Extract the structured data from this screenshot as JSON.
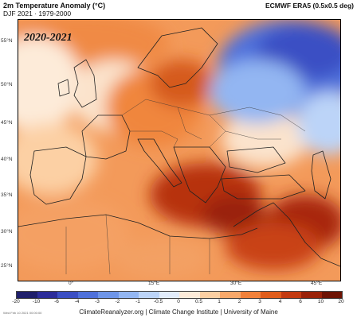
{
  "header": {
    "title_left": "2m Temperature Anomaly (°C)",
    "subtitle_left": "DJF 2021 · 1979-2000",
    "title_right": "ECMWF ERA5 (0.5x0.5 deg)"
  },
  "map": {
    "overlay_label": "2020-2021",
    "lat_labels": [
      "55°N",
      "50°N",
      "45°N",
      "40°N",
      "35°N",
      "30°N",
      "25°N"
    ],
    "lon_labels": [
      "0°",
      "15°E",
      "30°E",
      "45°E"
    ]
  },
  "colorbar": {
    "ticks": [
      "-20",
      "-10",
      "-6",
      "-4",
      "-3",
      "-2",
      "-1",
      "-0.5",
      "0",
      "0.5",
      "1",
      "2",
      "3",
      "4",
      "6",
      "10",
      "20"
    ],
    "colors": [
      "#1f1f6b",
      "#2d2d9a",
      "#3b4fc4",
      "#4f71db",
      "#6e95e8",
      "#93b6f2",
      "#bcd4f8",
      "#e2ecfb",
      "#fdebd9",
      "#fccfa2",
      "#f9a86a",
      "#f2813a",
      "#e15d1c",
      "#c33b12",
      "#9a2209",
      "#6e1304"
    ]
  },
  "footer": {
    "credit": "ClimateReanalyzer.org | Climate Change Institute | University of Maine",
    "tiny_note": "Wed Feb 10 2021 00:00:00"
  }
}
